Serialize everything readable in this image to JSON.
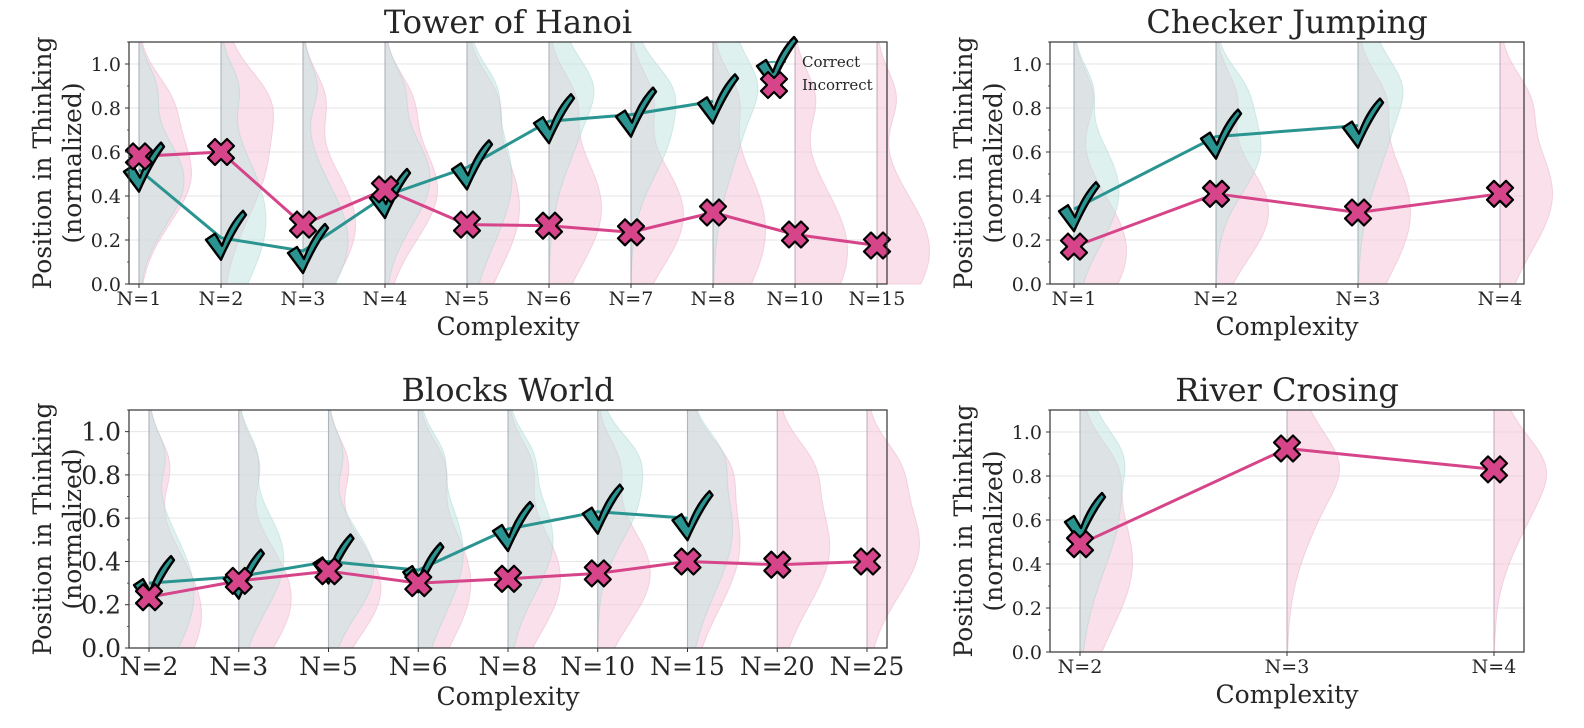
{
  "colors": {
    "correct": "#2a9490",
    "incorrect": "#d6458a",
    "correct_violin": "#bfe3df",
    "incorrect_violin": "#f6c6d9"
  },
  "legend": {
    "correct_label": "Correct",
    "incorrect_label": "Incorrect",
    "placement": "top-right"
  },
  "chart_data": [
    {
      "id": "hanoi",
      "type": "line",
      "title": "Tower of Hanoi",
      "xlabel": "Complexity",
      "ylabel": "Position in Thinking\n(normalized)",
      "ylim": [
        0,
        1.1
      ],
      "yticks": [
        "0.0",
        "0.2",
        "0.4",
        "0.6",
        "0.8",
        "1.0"
      ],
      "categories": [
        "N=1",
        "N=2",
        "N=3",
        "N=4",
        "N=5",
        "N=6",
        "N=7",
        "N=8",
        "N=10",
        "N=15"
      ],
      "grid": true,
      "legend": true,
      "series": [
        {
          "name": "Correct",
          "values": [
            0.52,
            0.21,
            0.15,
            0.4,
            0.53,
            0.74,
            0.77,
            0.83,
            null,
            null
          ]
        },
        {
          "name": "Incorrect",
          "values": [
            0.58,
            0.6,
            0.27,
            0.43,
            0.27,
            0.265,
            0.235,
            0.325,
            0.225,
            0.175
          ]
        }
      ]
    },
    {
      "id": "checker",
      "type": "line",
      "title": "Checker Jumping",
      "xlabel": "Complexity",
      "ylabel": "Position in Thinking\n(normalized)",
      "ylim": [
        0,
        1.1
      ],
      "yticks": [
        "0.0",
        "0.2",
        "0.4",
        "0.6",
        "0.8",
        "1.0"
      ],
      "categories": [
        "N=1",
        "N=2",
        "N=3",
        "N=4"
      ],
      "grid": true,
      "legend": false,
      "series": [
        {
          "name": "Correct",
          "values": [
            0.34,
            0.67,
            0.72,
            null
          ]
        },
        {
          "name": "Incorrect",
          "values": [
            0.17,
            0.41,
            0.325,
            0.41
          ]
        }
      ]
    },
    {
      "id": "blocks",
      "type": "line",
      "title": "Blocks World",
      "xlabel": "Complexity",
      "ylabel": "Position in Thinking\n(normalized)",
      "ylim": [
        0,
        1.1
      ],
      "yticks": [
        "0.0",
        "0.2",
        "0.4",
        "0.6",
        "0.8",
        "1.0"
      ],
      "categories": [
        "N=2",
        "N=3",
        "N=5",
        "N=6",
        "N=8",
        "N=10",
        "N=15",
        "N=20",
        "N=25"
      ],
      "grid": true,
      "legend": false,
      "series": [
        {
          "name": "Correct",
          "values": [
            0.3,
            0.33,
            0.4,
            0.36,
            0.55,
            0.63,
            0.6,
            null,
            null
          ]
        },
        {
          "name": "Incorrect",
          "values": [
            0.235,
            0.31,
            0.355,
            0.3,
            0.32,
            0.345,
            0.4,
            0.385,
            0.4
          ]
        }
      ]
    },
    {
      "id": "river",
      "type": "line",
      "title": "River Crosing",
      "xlabel": "Complexity",
      "ylabel": "Position in Thinking\n(normalized)",
      "ylim": [
        0,
        1.1
      ],
      "yticks": [
        "0.0",
        "0.2",
        "0.4",
        "0.6",
        "0.8",
        "1.0"
      ],
      "categories": [
        "N=2",
        "N=3",
        "N=4"
      ],
      "grid": true,
      "legend": false,
      "series": [
        {
          "name": "Correct",
          "values": [
            0.6,
            null,
            null
          ]
        },
        {
          "name": "Incorrect",
          "values": [
            0.49,
            0.925,
            0.83
          ]
        }
      ]
    }
  ]
}
